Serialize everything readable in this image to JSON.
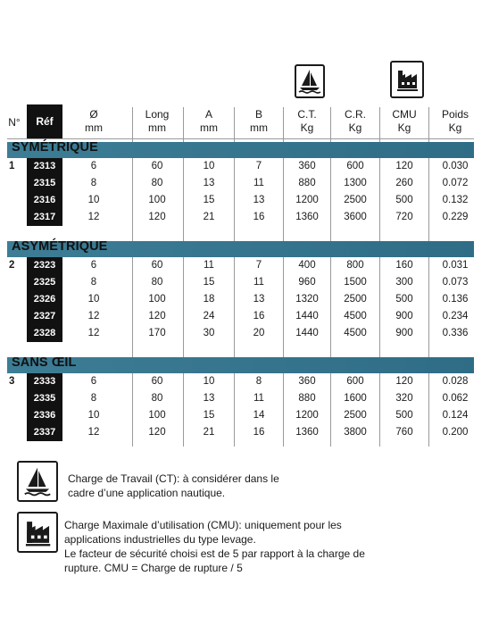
{
  "icons": {
    "ct_icon": "sailboat-icon",
    "cmu_icon": "factory-icon"
  },
  "headers": {
    "no": "N°",
    "ref": "Réf",
    "diam": [
      "Ø",
      "mm"
    ],
    "long": [
      "Long",
      "mm"
    ],
    "a": [
      "A",
      "mm"
    ],
    "b": [
      "B",
      "mm"
    ],
    "ct": [
      "C.T.",
      "Kg"
    ],
    "cr": [
      "C.R.",
      "Kg"
    ],
    "cmu": [
      "CMU",
      "Kg"
    ],
    "poids": [
      "Poids",
      "Kg"
    ]
  },
  "sections": [
    {
      "title": "SYMÉTRIQUE",
      "number": "1",
      "rows": [
        {
          "ref": "2313",
          "diam": "6",
          "long": "60",
          "a": "10",
          "b": "7",
          "ct": "360",
          "cr": "600",
          "cmu": "120",
          "poids": "0.030"
        },
        {
          "ref": "2315",
          "diam": "8",
          "long": "80",
          "a": "13",
          "b": "11",
          "ct": "880",
          "cr": "1300",
          "cmu": "260",
          "poids": "0.072"
        },
        {
          "ref": "2316",
          "diam": "10",
          "long": "100",
          "a": "15",
          "b": "13",
          "ct": "1200",
          "cr": "2500",
          "cmu": "500",
          "poids": "0.132"
        },
        {
          "ref": "2317",
          "diam": "12",
          "long": "120",
          "a": "21",
          "b": "16",
          "ct": "1360",
          "cr": "3600",
          "cmu": "720",
          "poids": "0.229"
        }
      ]
    },
    {
      "title": "ASYMÉTRIQUE",
      "number": "2",
      "rows": [
        {
          "ref": "2323",
          "diam": "6",
          "long": "60",
          "a": "11",
          "b": "7",
          "ct": "400",
          "cr": "800",
          "cmu": "160",
          "poids": "0.031"
        },
        {
          "ref": "2325",
          "diam": "8",
          "long": "80",
          "a": "15",
          "b": "11",
          "ct": "960",
          "cr": "1500",
          "cmu": "300",
          "poids": "0.073"
        },
        {
          "ref": "2326",
          "diam": "10",
          "long": "100",
          "a": "18",
          "b": "13",
          "ct": "1320",
          "cr": "2500",
          "cmu": "500",
          "poids": "0.136"
        },
        {
          "ref": "2327",
          "diam": "12",
          "long": "120",
          "a": "24",
          "b": "16",
          "ct": "1440",
          "cr": "4500",
          "cmu": "900",
          "poids": "0.234"
        },
        {
          "ref": "2328",
          "diam": "12",
          "long": "170",
          "a": "30",
          "b": "20",
          "ct": "1440",
          "cr": "4500",
          "cmu": "900",
          "poids": "0.336"
        }
      ]
    },
    {
      "title": "SANS ŒIL",
      "number": "3",
      "rows": [
        {
          "ref": "2333",
          "diam": "6",
          "long": "60",
          "a": "10",
          "b": "8",
          "ct": "360",
          "cr": "600",
          "cmu": "120",
          "poids": "0.028"
        },
        {
          "ref": "2335",
          "diam": "8",
          "long": "80",
          "a": "13",
          "b": "11",
          "ct": "880",
          "cr": "1600",
          "cmu": "320",
          "poids": "0.062"
        },
        {
          "ref": "2336",
          "diam": "10",
          "long": "100",
          "a": "15",
          "b": "14",
          "ct": "1200",
          "cr": "2500",
          "cmu": "500",
          "poids": "0.124"
        },
        {
          "ref": "2337",
          "diam": "12",
          "long": "120",
          "a": "21",
          "b": "16",
          "ct": "1360",
          "cr": "3800",
          "cmu": "760",
          "poids": "0.200"
        }
      ]
    }
  ],
  "legend": {
    "ct_lines": [
      "Charge de Travail (CT): à considérer dans le",
      "cadre d’une application nautique."
    ],
    "cmu_lines": [
      "Charge Maximale d’utilisation (CMU): uniquement pour les",
      "applications industrielles du type levage.",
      "Le facteur de sécurité choisi est de 5 par rapport à la charge de",
      "rupture. CMU = Charge de rupture / 5"
    ]
  }
}
